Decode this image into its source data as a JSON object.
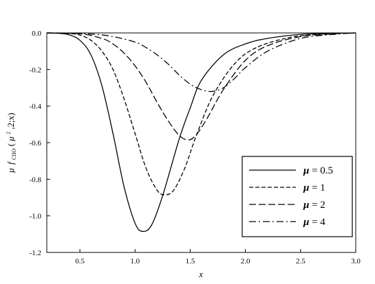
{
  "chart_data": {
    "type": "line",
    "xlabel": "x",
    "ylabel_parts": {
      "mu": "μ",
      "f": "f",
      "sub": "CIIO",
      "open": "(",
      "mu2": "μ",
      "sup": "2",
      "rest": ",2;x)"
    },
    "xlim": [
      0.2,
      3.0
    ],
    "ylim": [
      -1.2,
      0.0
    ],
    "xticks": [
      0.5,
      1.0,
      1.5,
      2.0,
      2.5,
      3.0
    ],
    "xtick_labels": [
      "0.5",
      "1.0",
      "1.5",
      "2.0",
      "2.5",
      "3.0"
    ],
    "yticks": [
      0.0,
      -0.2,
      -0.4,
      -0.6,
      -0.8,
      -1.0,
      -1.2
    ],
    "ytick_labels": [
      "0.0",
      "-0.2",
      "-0.4",
      "-0.6",
      "-0.8",
      "-1.0",
      "-1.2"
    ],
    "grid": false,
    "legend_position": "bottom-right",
    "series": [
      {
        "name": "μ = 0.5",
        "symbol": "μ",
        "value_text": " = 0.5",
        "dash": "solid",
        "x": [
          0.2,
          0.3,
          0.4,
          0.5,
          0.6,
          0.7,
          0.8,
          0.9,
          1.0,
          1.07,
          1.15,
          1.25,
          1.4,
          1.5,
          1.6,
          1.8,
          2.0,
          2.2,
          2.5,
          2.8,
          3.0
        ],
        "y": [
          0.0,
          -0.002,
          -0.01,
          -0.04,
          -0.12,
          -0.29,
          -0.55,
          -0.84,
          -1.04,
          -1.085,
          -1.05,
          -0.89,
          -0.58,
          -0.41,
          -0.26,
          -0.12,
          -0.06,
          -0.03,
          -0.008,
          -0.002,
          0.0
        ]
      },
      {
        "name": "μ = 1",
        "symbol": "μ",
        "value_text": " = 1",
        "dash": "dashed",
        "x": [
          0.2,
          0.4,
          0.5,
          0.6,
          0.7,
          0.8,
          0.9,
          1.0,
          1.1,
          1.2,
          1.27,
          1.35,
          1.45,
          1.55,
          1.7,
          1.9,
          2.1,
          2.4,
          2.7,
          3.0
        ],
        "y": [
          0.0,
          -0.003,
          -0.012,
          -0.04,
          -0.1,
          -0.2,
          -0.36,
          -0.55,
          -0.74,
          -0.86,
          -0.885,
          -0.86,
          -0.74,
          -0.57,
          -0.35,
          -0.17,
          -0.08,
          -0.025,
          -0.006,
          0.0
        ]
      },
      {
        "name": "μ = 2",
        "symbol": "μ",
        "value_text": " = 2",
        "dash": "longdash",
        "x": [
          0.2,
          0.5,
          0.7,
          0.8,
          0.9,
          1.0,
          1.1,
          1.2,
          1.3,
          1.4,
          1.48,
          1.55,
          1.65,
          1.8,
          2.0,
          2.2,
          2.5,
          2.8,
          3.0
        ],
        "y": [
          0.0,
          -0.004,
          -0.03,
          -0.06,
          -0.11,
          -0.18,
          -0.27,
          -0.38,
          -0.48,
          -0.56,
          -0.585,
          -0.56,
          -0.47,
          -0.31,
          -0.15,
          -0.07,
          -0.02,
          -0.005,
          0.0
        ]
      },
      {
        "name": "μ = 4",
        "symbol": "μ",
        "value_text": " = 4",
        "dash": "dashdot",
        "x": [
          0.2,
          0.6,
          0.8,
          1.0,
          1.1,
          1.2,
          1.3,
          1.4,
          1.5,
          1.6,
          1.7,
          1.8,
          1.9,
          2.0,
          2.2,
          2.5,
          2.8,
          3.0
        ],
        "y": [
          0.0,
          -0.006,
          -0.02,
          -0.05,
          -0.08,
          -0.12,
          -0.17,
          -0.23,
          -0.28,
          -0.31,
          -0.32,
          -0.3,
          -0.25,
          -0.19,
          -0.1,
          -0.03,
          -0.008,
          0.0
        ]
      }
    ]
  }
}
